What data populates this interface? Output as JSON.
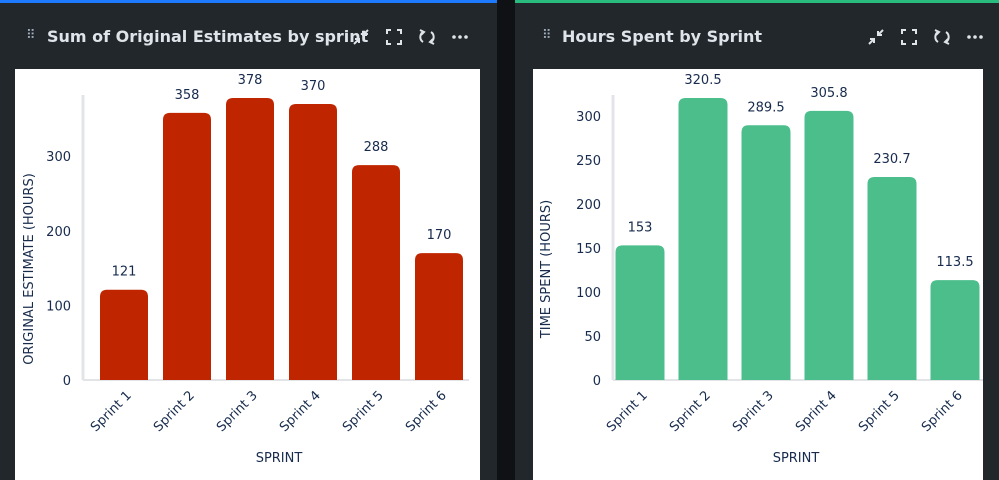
{
  "panels": [
    {
      "title": "Sum of Original Estimates by sprint",
      "accent_color": "#1d7afc",
      "tool_icons": [
        "collapse-icon",
        "fullscreen-icon",
        "refresh-icon",
        "more-icon"
      ]
    },
    {
      "title": "Hours Spent by Sprint",
      "accent_color": "#2abb7f",
      "tool_icons": [
        "collapse-icon",
        "fullscreen-icon",
        "refresh-icon",
        "more-icon"
      ]
    }
  ],
  "chart_data": [
    {
      "type": "bar",
      "categories": [
        "Sprint 1",
        "Sprint 2",
        "Sprint 3",
        "Sprint 4",
        "Sprint 5",
        "Sprint 6"
      ],
      "values": [
        121,
        358,
        378,
        370,
        288,
        170
      ],
      "data_labels": [
        "121",
        "358",
        "378",
        "370",
        "288",
        "170"
      ],
      "xlabel": "SPRINT",
      "ylabel": "ORIGINAL ESTIMATE (HOURS)",
      "ylim": [
        0,
        378
      ],
      "yticks": [
        0,
        100,
        200,
        300
      ],
      "bar_color": "#bf2600",
      "grid": false
    },
    {
      "type": "bar",
      "categories": [
        "Sprint 1",
        "Sprint 2",
        "Sprint 3",
        "Sprint 4",
        "Sprint 5",
        "Sprint 6"
      ],
      "values": [
        153,
        320.5,
        289.5,
        305.8,
        230.7,
        113.5
      ],
      "data_labels": [
        "153",
        "320.5",
        "289.5",
        "305.8",
        "230.7",
        "113.5"
      ],
      "xlabel": "SPRINT",
      "ylabel": "TIME SPENT (HOURS)",
      "ylim": [
        0,
        320.5
      ],
      "yticks": [
        0,
        50,
        100,
        150,
        200,
        250,
        300
      ],
      "bar_color": "#4bbe8c",
      "grid": false
    }
  ]
}
